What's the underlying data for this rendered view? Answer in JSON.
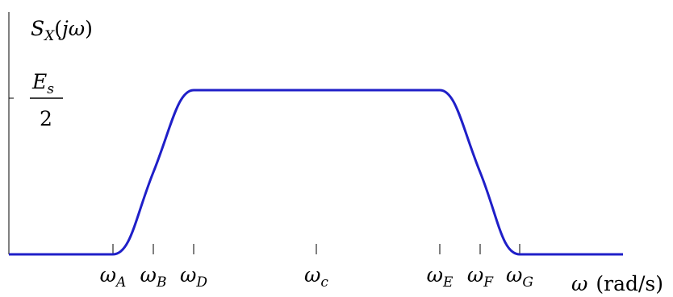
{
  "chart_data": {
    "type": "line",
    "ylabel": "S_X(jω)",
    "xlabel": "ω (rad/s)",
    "y_tick": {
      "numerator": "E_s",
      "denominator": "2"
    },
    "x_ticks": [
      "ω_A",
      "ω_B",
      "ω_D",
      "ω_c",
      "ω_E",
      "ω_F",
      "ω_G"
    ],
    "series": [
      {
        "color": "#1f1fc8",
        "points": [
          [
            "left end",
            0
          ],
          [
            "ω_A",
            0
          ],
          [
            "ω_B",
            0.5
          ],
          [
            "ω_D",
            1
          ],
          [
            "ω_c",
            1
          ],
          [
            "ω_E",
            1
          ],
          [
            "ω_F",
            0.5
          ],
          [
            "ω_G",
            0
          ],
          [
            "right end",
            0
          ]
        ]
      }
    ],
    "ylim": [
      0,
      1
    ],
    "grid": false
  }
}
